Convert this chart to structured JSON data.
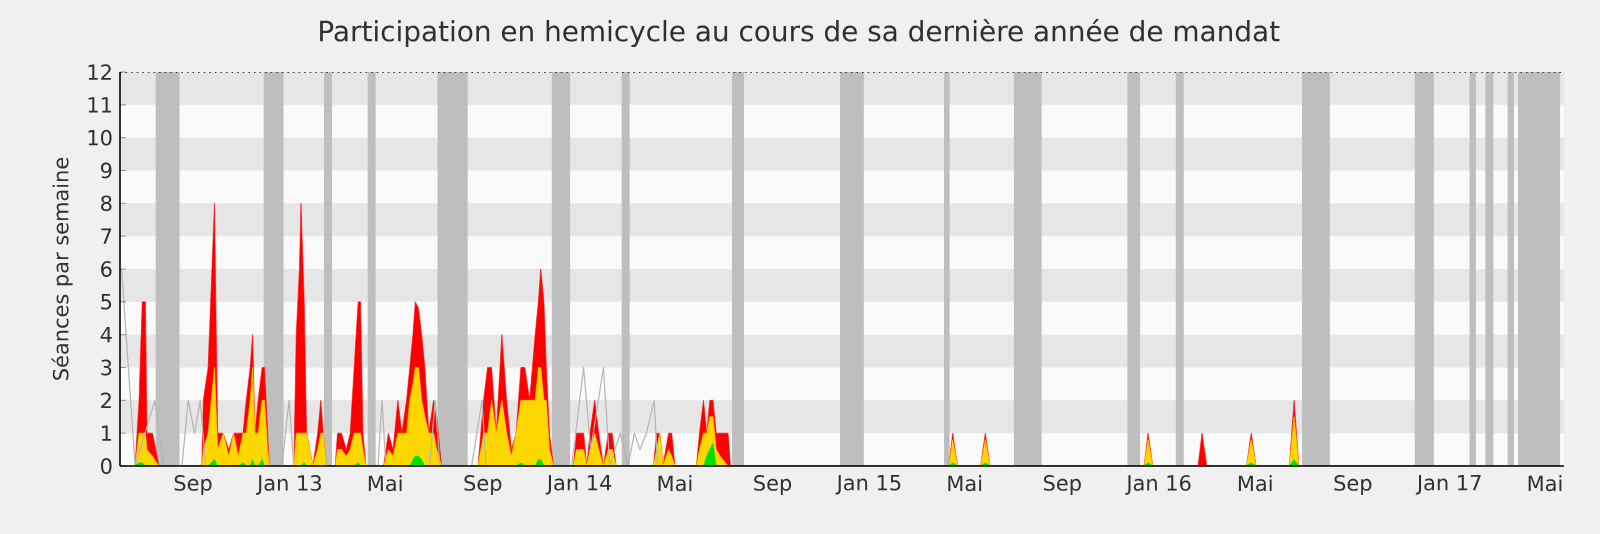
{
  "chart_data": {
    "type": "area",
    "title": "Participation en hemicycle au cours de sa dernière année de mandat",
    "ylabel": "Séances par semaine",
    "x": [
      "2012-06-20",
      "2012-06-25",
      "2012-06-29",
      "2012-07-03",
      "2012-07-05",
      "2012-07-12",
      "2012-07-20",
      "2012-09-12",
      "2012-09-14",
      "2012-09-20",
      "2012-09-28",
      "2012-10-02",
      "2012-10-09",
      "2012-10-16",
      "2012-10-22",
      "2012-10-28",
      "2012-11-03",
      "2012-11-07",
      "2012-11-12",
      "2012-11-15",
      "2012-11-18",
      "2012-11-22",
      "2012-11-27",
      "2012-11-30",
      "2012-12-04",
      "2012-12-06",
      "2013-01-06",
      "2013-01-09",
      "2013-01-13",
      "2013-01-15",
      "2013-01-19",
      "2013-01-22",
      "2013-01-26",
      "2013-01-30",
      "2013-02-05",
      "2013-02-09",
      "2013-02-12",
      "2013-02-16",
      "2013-02-27",
      "2013-03-02",
      "2013-03-07",
      "2013-03-13",
      "2013-03-18",
      "2013-03-23",
      "2013-03-28",
      "2013-03-31",
      "2013-04-03",
      "2013-04-07",
      "2013-04-29",
      "2013-05-05",
      "2013-05-11",
      "2013-05-17",
      "2013-05-22",
      "2013-05-28",
      "2013-06-01",
      "2013-06-05",
      "2013-06-08",
      "2013-06-12",
      "2013-06-16",
      "2013-06-20",
      "2013-06-25",
      "2013-07-01",
      "2013-07-05",
      "2013-07-11",
      "2013-08-26",
      "2013-09-02",
      "2013-09-07",
      "2013-09-12",
      "2013-09-18",
      "2013-09-25",
      "2013-10-01",
      "2013-10-07",
      "2013-10-13",
      "2013-10-19",
      "2013-10-24",
      "2013-10-30",
      "2013-11-06",
      "2013-11-10",
      "2013-11-13",
      "2013-11-17",
      "2013-11-20",
      "2013-11-24",
      "2013-11-29",
      "2013-12-24",
      "2013-12-28",
      "2014-01-06",
      "2014-01-10",
      "2014-01-14",
      "2014-01-20",
      "2014-01-25",
      "2014-01-31",
      "2014-02-06",
      "2014-02-11",
      "2014-02-16",
      "2014-04-04",
      "2014-04-08",
      "2014-04-12",
      "2014-04-16",
      "2014-04-23",
      "2014-04-27",
      "2014-05-01",
      "2014-05-28",
      "2014-06-01",
      "2014-06-06",
      "2014-06-10",
      "2014-06-14",
      "2014-06-18",
      "2014-06-22",
      "2014-06-27",
      "2014-07-07",
      "2014-07-10",
      "2015-04-11",
      "2015-04-16",
      "2015-04-22",
      "2015-05-21",
      "2015-05-27",
      "2015-06-02",
      "2015-12-13",
      "2015-12-18",
      "2015-12-24",
      "2016-02-19",
      "2016-02-24",
      "2016-03-01",
      "2016-04-20",
      "2016-04-26",
      "2016-05-02",
      "2016-06-13",
      "2016-06-19",
      "2016-06-25",
      "2017-05-20"
    ],
    "series": [
      {
        "color": "#ff0000",
        "values": [
          0,
          2,
          5,
          5,
          1,
          1,
          0,
          0,
          2,
          3,
          8,
          1,
          1,
          0.5,
          1,
          1,
          1,
          2,
          3,
          4,
          1,
          2,
          3,
          3,
          1,
          0,
          0,
          4,
          6,
          8,
          5,
          1,
          0.5,
          0,
          1,
          2,
          1,
          0,
          0,
          1,
          1,
          0.5,
          1,
          3,
          5,
          5,
          1,
          0,
          0,
          1,
          0.5,
          2,
          1,
          2,
          3,
          4,
          5,
          4.8,
          4,
          3,
          1,
          2,
          1.5,
          0,
          0,
          2,
          3,
          3,
          1,
          4,
          2,
          0.5,
          1,
          3,
          3,
          2,
          4,
          5,
          6,
          5,
          3,
          1,
          0,
          0,
          1,
          1,
          0,
          1,
          2,
          1,
          0,
          1,
          1,
          0,
          0,
          1,
          1,
          0,
          1,
          1,
          0,
          0,
          1,
          2,
          1,
          2,
          2,
          1,
          1,
          1,
          0,
          0,
          1,
          0,
          0,
          1,
          0,
          0,
          1,
          0,
          0,
          1,
          0,
          0,
          1,
          0,
          0,
          2,
          0,
          0
        ]
      },
      {
        "color": "#ffd700",
        "values": [
          0,
          1,
          1,
          1,
          0.5,
          0.3,
          0,
          0,
          0.5,
          1,
          3,
          0.5,
          1,
          0.3,
          1,
          0.3,
          1,
          1,
          2,
          3,
          1,
          1,
          2,
          2,
          0.5,
          0,
          0,
          1,
          1,
          1,
          1,
          1,
          0.5,
          0,
          0.5,
          1,
          1,
          0,
          0,
          0.5,
          0.5,
          0.3,
          0.5,
          1,
          1,
          1,
          0.5,
          0,
          0,
          0.5,
          0.3,
          1,
          1,
          1,
          2,
          2.5,
          3,
          3,
          2,
          1.5,
          1,
          1,
          0.5,
          0,
          0,
          1,
          1,
          2,
          1,
          2,
          1,
          0.3,
          1,
          2,
          2,
          2,
          2,
          3,
          3,
          2,
          2,
          0.5,
          0,
          0,
          0.5,
          0.5,
          0,
          0.5,
          1,
          0.5,
          0,
          0.5,
          0.5,
          0,
          0,
          0.5,
          1,
          0,
          0.5,
          0.3,
          0,
          0,
          0.5,
          1,
          1,
          1.5,
          1.5,
          0.5,
          0.3,
          0,
          0,
          0,
          0.8,
          0,
          0,
          0.8,
          0,
          0,
          0.8,
          0,
          0,
          0,
          0,
          0,
          0.8,
          0,
          0,
          1.5,
          0,
          0
        ]
      },
      {
        "color": "#00e000",
        "values": [
          0,
          0.1,
          0.1,
          0,
          0,
          0,
          0,
          0,
          0,
          0,
          0.2,
          0,
          0,
          0,
          0,
          0,
          0.1,
          0,
          0,
          0.2,
          0,
          0,
          0.2,
          0,
          0,
          0,
          0,
          0,
          0,
          0,
          0.1,
          0,
          0,
          0,
          0,
          0,
          0,
          0,
          0,
          0,
          0,
          0,
          0,
          0,
          0.1,
          0,
          0,
          0,
          0,
          0,
          0,
          0,
          0,
          0,
          0,
          0.2,
          0.3,
          0.3,
          0.2,
          0,
          0,
          0,
          0,
          0,
          0,
          0,
          0,
          0,
          0,
          0,
          0,
          0,
          0,
          0.1,
          0,
          0,
          0,
          0.2,
          0.2,
          0,
          0,
          0,
          0,
          0,
          0,
          0,
          0,
          0,
          0,
          0,
          0,
          0,
          0,
          0,
          0,
          0,
          0,
          0,
          0,
          0,
          0,
          0,
          0,
          0,
          0.3,
          0.5,
          0.7,
          0,
          0,
          0,
          0,
          0,
          0.1,
          0,
          0,
          0.1,
          0,
          0,
          0.1,
          0,
          0,
          0,
          0,
          0,
          0.1,
          0,
          0,
          0.2,
          0,
          0
        ]
      },
      {
        "type": "line",
        "color": "#b4b4b4",
        "x": [
          "2012-06-03",
          "2012-06-20",
          "2012-07-15",
          "2012-07-26",
          "2012-08-18",
          "2012-08-26",
          "2012-09-03",
          "2012-09-10",
          "2012-09-17",
          "2012-12-22",
          "2012-12-31",
          "2013-01-06",
          "2013-04-22",
          "2013-04-27",
          "2013-05-02",
          "2013-06-26",
          "2013-07-03",
          "2013-07-09",
          "2013-08-18",
          "2013-08-31",
          "2013-09-05",
          "2013-12-22",
          "2014-01-06",
          "2014-01-15",
          "2014-01-31",
          "2014-02-08",
          "2014-02-21",
          "2014-03-03",
          "2014-03-11",
          "2014-03-18",
          "2014-03-26",
          "2014-04-05",
          "2014-04-09"
        ],
        "values": [
          6,
          0,
          2,
          0,
          0,
          2,
          1,
          2,
          0,
          0,
          2,
          0,
          0,
          2,
          0,
          0,
          2,
          0,
          0,
          2,
          0,
          0,
          3,
          0.5,
          3,
          0,
          1,
          0,
          1,
          0.5,
          1,
          2,
          0
        ]
      }
    ],
    "xlim": [
      "2012-06-01",
      "2017-05-25"
    ],
    "ylim": [
      0,
      12
    ],
    "xticks": [
      {
        "value": "2012-09-01",
        "label": "Sep"
      },
      {
        "value": "2013-01-01",
        "label": "Jan 13"
      },
      {
        "value": "2013-05-01",
        "label": "Mai"
      },
      {
        "value": "2013-09-01",
        "label": "Sep"
      },
      {
        "value": "2014-01-01",
        "label": "Jan 14"
      },
      {
        "value": "2014-05-01",
        "label": "Mai"
      },
      {
        "value": "2014-09-01",
        "label": "Sep"
      },
      {
        "value": "2015-01-01",
        "label": "Jan 15"
      },
      {
        "value": "2015-05-01",
        "label": "Mai"
      },
      {
        "value": "2015-09-01",
        "label": "Sep"
      },
      {
        "value": "2016-01-01",
        "label": "Jan 16"
      },
      {
        "value": "2016-05-01",
        "label": "Mai"
      },
      {
        "value": "2016-09-01",
        "label": "Sep"
      },
      {
        "value": "2017-01-01",
        "label": "Jan 17"
      },
      {
        "value": "2017-05-01",
        "label": "Mai"
      }
    ],
    "yticks": [
      0,
      1,
      2,
      3,
      4,
      5,
      6,
      7,
      8,
      9,
      10,
      11,
      12
    ],
    "ref_lines": [
      {
        "axis": "y",
        "value": 12,
        "color": "#000000",
        "line_style": "dotted"
      }
    ],
    "bands": [
      {
        "axis": "y",
        "from": 1,
        "to": 2,
        "color": "#e6e6e6"
      },
      {
        "axis": "y",
        "from": 3,
        "to": 4,
        "color": "#e6e6e6"
      },
      {
        "axis": "y",
        "from": 5,
        "to": 6,
        "color": "#e6e6e6"
      },
      {
        "axis": "y",
        "from": 7,
        "to": 8,
        "color": "#e6e6e6"
      },
      {
        "axis": "y",
        "from": 9,
        "to": 10,
        "color": "#e6e6e6"
      },
      {
        "axis": "y",
        "from": 11,
        "to": 12,
        "color": "#e6e6e6"
      },
      {
        "axis": "x",
        "from": "2012-07-16",
        "to": "2012-08-15",
        "color": "#bebebe"
      },
      {
        "axis": "x",
        "from": "2012-11-29",
        "to": "2012-12-24",
        "color": "#bebebe"
      },
      {
        "axis": "x",
        "from": "2013-02-13",
        "to": "2013-02-23",
        "color": "#bebebe"
      },
      {
        "axis": "x",
        "from": "2013-04-09",
        "to": "2013-04-19",
        "color": "#bebebe"
      },
      {
        "axis": "x",
        "from": "2013-07-06",
        "to": "2013-08-13",
        "color": "#bebebe"
      },
      {
        "axis": "x",
        "from": "2013-11-27",
        "to": "2013-12-20",
        "color": "#bebebe"
      },
      {
        "axis": "x",
        "from": "2014-02-23",
        "to": "2014-03-05",
        "color": "#bebebe"
      },
      {
        "axis": "x",
        "from": "2014-07-12",
        "to": "2014-07-27",
        "color": "#bebebe"
      },
      {
        "axis": "x",
        "from": "2014-11-25",
        "to": "2014-12-25",
        "color": "#bebebe"
      },
      {
        "axis": "x",
        "from": "2015-04-05",
        "to": "2015-04-12",
        "color": "#bebebe"
      },
      {
        "axis": "x",
        "from": "2015-07-02",
        "to": "2015-08-06",
        "color": "#bebebe"
      },
      {
        "axis": "x",
        "from": "2015-11-22",
        "to": "2015-12-08",
        "color": "#bebebe"
      },
      {
        "axis": "x",
        "from": "2016-01-22",
        "to": "2016-02-01",
        "color": "#bebebe"
      },
      {
        "axis": "x",
        "from": "2016-06-29",
        "to": "2016-08-03",
        "color": "#bebebe"
      },
      {
        "axis": "x",
        "from": "2016-11-18",
        "to": "2016-12-12",
        "color": "#bebebe"
      },
      {
        "axis": "x",
        "from": "2017-01-26",
        "to": "2017-02-03",
        "color": "#bebebe"
      },
      {
        "axis": "x",
        "from": "2017-02-15",
        "to": "2017-02-25",
        "color": "#bebebe"
      },
      {
        "axis": "x",
        "from": "2017-03-15",
        "to": "2017-03-23",
        "color": "#bebebe"
      },
      {
        "axis": "x",
        "from": "2017-03-28",
        "to": "2017-05-20",
        "color": "#bebebe"
      }
    ]
  }
}
